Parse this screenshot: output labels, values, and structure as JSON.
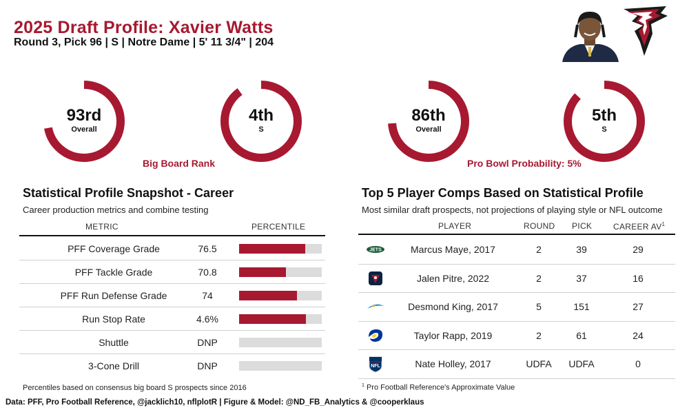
{
  "header": {
    "title": "2025 Draft Profile: Xavier Watts",
    "subtitle": "Round 3, Pick 96 | S | Notre Dame | 5' 11 3/4\" | 204"
  },
  "rings": {
    "big_board": {
      "caption": "Big Board Rank",
      "overall": {
        "value": "93rd",
        "label": "Overall",
        "fill": 0.72
      },
      "position": {
        "value": "4th",
        "label": "S",
        "fill": 0.9
      }
    },
    "pro_bowl": {
      "caption": "Pro Bowl Probability: 5%",
      "overall": {
        "value": "86th",
        "label": "Overall",
        "fill": 0.74
      },
      "position": {
        "value": "5th",
        "label": "S",
        "fill": 0.87
      }
    }
  },
  "stat_profile": {
    "title": "Statistical Profile Snapshot - Career",
    "subtitle": "Career production metrics and combine testing",
    "col_metric": "METRIC",
    "col_percentile": "PERCENTILE",
    "rows": [
      {
        "metric": "PFF Coverage Grade",
        "value": "76.5",
        "percentile": 0.8
      },
      {
        "metric": "PFF Tackle Grade",
        "value": "70.8",
        "percentile": 0.57
      },
      {
        "metric": "PFF Run Defense Grade",
        "value": "74",
        "percentile": 0.7
      },
      {
        "metric": "Run Stop Rate",
        "value": "4.6%",
        "percentile": 0.81
      },
      {
        "metric": "Shuttle",
        "value": "DNP",
        "percentile": 0
      },
      {
        "metric": "3-Cone Drill",
        "value": "DNP",
        "percentile": 0
      }
    ],
    "footnote": "Percentiles based on consensus big board S prospects since 2016"
  },
  "comps": {
    "title": "Top 5 Player Comps Based on Statistical Profile",
    "subtitle": "Most similar draft prospects, not projections of playing style or NFL outcome",
    "col_player": "PLAYER",
    "col_round": "ROUND",
    "col_pick": "PICK",
    "col_av": "CAREER AV",
    "col_av_sup": "1",
    "rows": [
      {
        "logo": "jets-logo-icon",
        "player": "Marcus Maye, 2017",
        "round": "2",
        "pick": "39",
        "av": "29"
      },
      {
        "logo": "texans-logo-icon",
        "player": "Jalen Pitre, 2022",
        "round": "2",
        "pick": "37",
        "av": "16"
      },
      {
        "logo": "chargers-logo-icon",
        "player": "Desmond King, 2017",
        "round": "5",
        "pick": "151",
        "av": "27"
      },
      {
        "logo": "rams-logo-icon",
        "player": "Taylor Rapp, 2019",
        "round": "2",
        "pick": "61",
        "av": "24"
      },
      {
        "logo": "nfl-logo-icon",
        "player": "Nate Holley, 2017",
        "round": "UDFA",
        "pick": "UDFA",
        "av": "0"
      }
    ],
    "footnote_sup": "1",
    "footnote": "Pro Football Reference's Approximate Value"
  },
  "credits": "Data: PFF, Pro Football Reference, @jacklich10, nflplotR | Figure & Model: @ND_FB_Analytics & @cooperklaus",
  "colors": {
    "accent": "#a71930",
    "bar_bg": "#dcdcdc"
  }
}
